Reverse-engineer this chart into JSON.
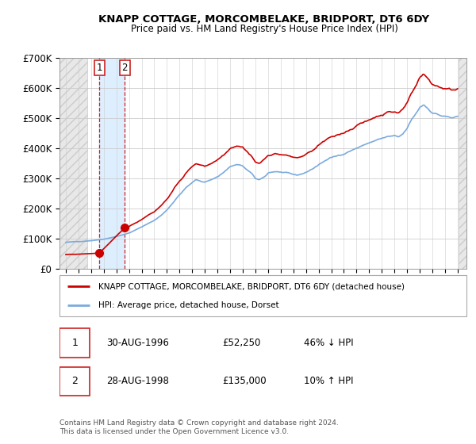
{
  "title": "KNAPP COTTAGE, MORCOMBELAKE, BRIDPORT, DT6 6DY",
  "subtitle": "Price paid vs. HM Land Registry's House Price Index (HPI)",
  "legend_label_red": "KNAPP COTTAGE, MORCOMBELAKE, BRIDPORT, DT6 6DY (detached house)",
  "legend_label_blue": "HPI: Average price, detached house, Dorset",
  "footer": "Contains HM Land Registry data © Crown copyright and database right 2024.\nThis data is licensed under the Open Government Licence v3.0.",
  "transaction1_date": "30-AUG-1996",
  "transaction1_price": "£52,250",
  "transaction1_hpi": "46% ↓ HPI",
  "transaction2_date": "28-AUG-1998",
  "transaction2_price": "£135,000",
  "transaction2_hpi": "10% ↑ HPI",
  "ylim": [
    0,
    700000
  ],
  "yticks": [
    0,
    100000,
    200000,
    300000,
    400000,
    500000,
    600000,
    700000
  ],
  "ytick_labels": [
    "£0",
    "£100K",
    "£200K",
    "£300K",
    "£400K",
    "£500K",
    "£600K",
    "£700K"
  ],
  "transaction1_year": 1996.667,
  "transaction1_value": 52250,
  "transaction2_year": 1998.667,
  "transaction2_value": 135000,
  "red_color": "#cc0000",
  "blue_color": "#7aaadd",
  "blue_shade_color": "#ddeeff",
  "hatch_color": "#cccccc",
  "hatch_face_color": "#e8e8e8",
  "background_color": "#ffffff",
  "grid_color": "#cccccc",
  "xlim_left": 1993.5,
  "xlim_right": 2025.7
}
